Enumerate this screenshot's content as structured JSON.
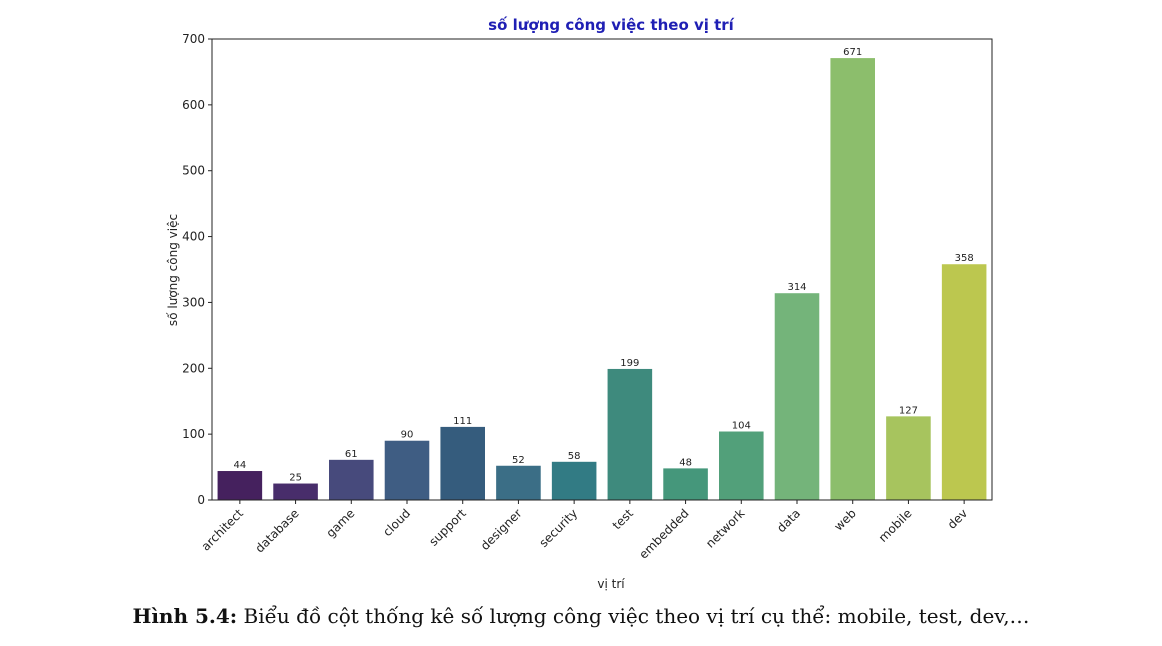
{
  "chart_data": {
    "type": "bar",
    "title": "số lượng công việc theo vị trí",
    "xlabel": "vị trí",
    "ylabel": "số lượng công việc",
    "categories": [
      "architect",
      "database",
      "game",
      "cloud",
      "support",
      "designer",
      "security",
      "test",
      "embedded",
      "network",
      "data",
      "web",
      "mobile",
      "dev"
    ],
    "values": [
      44,
      25,
      61,
      90,
      111,
      52,
      58,
      199,
      48,
      104,
      314,
      671,
      127,
      358
    ],
    "ylim": [
      0,
      700
    ],
    "yticks": [
      0,
      100,
      200,
      300,
      400,
      500,
      600,
      700
    ],
    "grid": false,
    "colors": [
      "#45215e",
      "#482d6b",
      "#474a7c",
      "#3f5d83",
      "#355c7d",
      "#3b6e86",
      "#327b84",
      "#3e8a7d",
      "#45977b",
      "#52a07a",
      "#74b47a",
      "#8cbe6c",
      "#a7c45e",
      "#bcc74f"
    ]
  },
  "caption": {
    "label": "Hình 5.4:",
    "text": "Biểu đồ cột thống kê số lượng công việc theo vị trí cụ thể: mobile, test, dev,…"
  }
}
